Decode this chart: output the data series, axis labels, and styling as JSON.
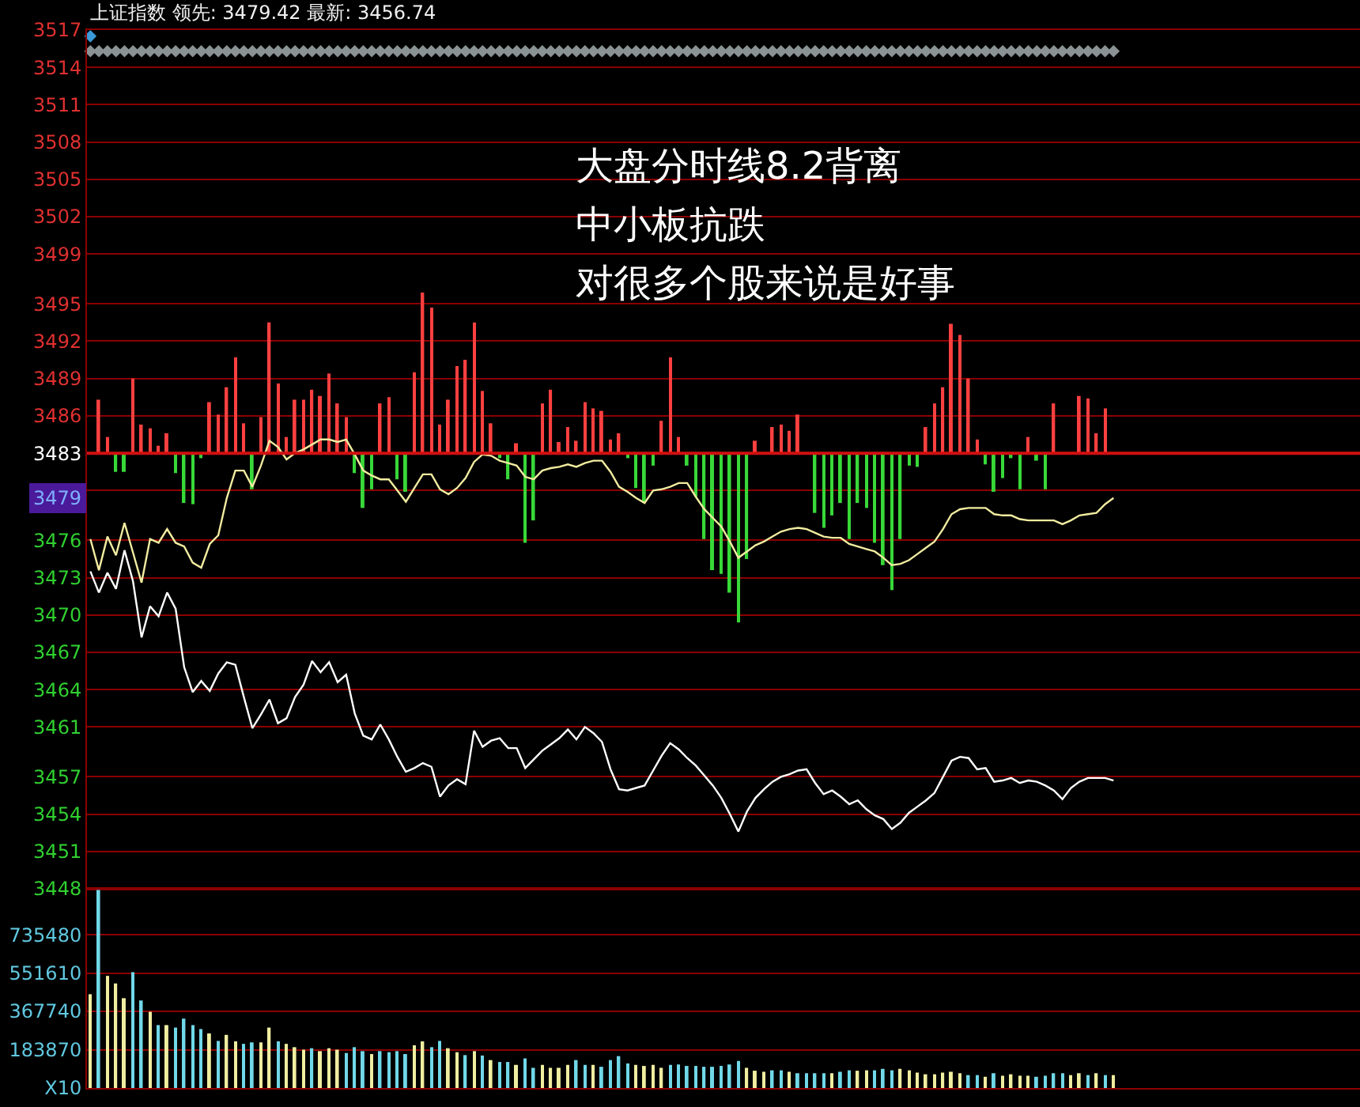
{
  "chart_data": [
    {
      "type": "line",
      "title": "上证指数 领先: 3479.42 最新: 3456.74",
      "annotations": [
        "大盘分时线8.2背离",
        "中小板抗跌",
        "对很多个股来说是好事",
        {
          "text": "3479",
          "y": 3479.42
        }
      ],
      "categories": [
        null,
        null,
        null,
        null,
        null,
        null,
        null,
        null,
        null,
        null,
        null,
        null,
        null,
        null,
        null,
        null,
        null,
        null,
        null,
        null,
        null,
        null,
        null,
        null,
        null,
        null,
        null,
        null,
        null,
        null,
        null,
        null,
        null,
        null,
        null,
        null,
        null,
        null,
        null,
        null,
        null,
        null,
        null,
        null,
        null,
        null,
        null,
        null,
        null,
        null,
        null,
        null,
        null,
        null,
        null,
        null,
        null,
        null,
        null,
        null,
        null,
        null,
        null,
        null,
        null,
        null,
        null,
        null,
        null,
        null,
        null,
        null,
        null,
        null,
        null,
        null,
        null,
        null,
        null,
        null,
        null,
        null,
        null,
        null,
        null,
        null,
        null,
        null,
        null,
        null,
        null,
        null,
        null,
        null,
        null,
        null,
        null,
        null,
        null,
        null,
        null,
        null,
        null,
        null,
        null,
        null,
        null,
        null,
        null,
        null,
        null,
        null,
        null,
        null,
        null,
        null,
        null,
        null,
        null,
        null,
        null
      ],
      "series": [
        {
          "type": "bar",
          "color": "#ff4040",
          "base": [
            null,
            3483,
            3483,
            null,
            null,
            3483,
            3483,
            3483,
            3483,
            3483,
            null,
            null,
            null,
            null,
            3483,
            3483,
            3483,
            3483,
            3483,
            null,
            3483,
            3483,
            3483,
            3483,
            3483,
            3483,
            3483,
            3483,
            3483,
            3483,
            3483,
            null,
            null,
            null,
            3483,
            3483,
            null,
            null,
            3483,
            3483,
            3483,
            3483,
            3483,
            3483,
            3483,
            3483,
            3483,
            3483,
            null,
            null,
            3483,
            null,
            null,
            3483,
            3483,
            3483,
            3483,
            3483,
            3483,
            3483,
            3483,
            3483,
            3483,
            null,
            null,
            null,
            null,
            3483,
            3483,
            3483,
            null,
            null,
            null,
            null,
            null,
            null,
            null,
            null,
            3483,
            null,
            3483,
            3483,
            3483,
            3483,
            null,
            null,
            null,
            null,
            null,
            null,
            null,
            null,
            null,
            null,
            null,
            null,
            null,
            null,
            3483,
            3483,
            3483,
            3483,
            3483,
            3483,
            3483,
            null,
            null,
            null,
            null,
            null,
            3483,
            null,
            null,
            3483,
            null,
            null,
            3483,
            3483,
            3483,
            3483,
            null
          ],
          "values": [
            null,
            4.3,
            1.3,
            null,
            null,
            6.0,
            2.3,
            2.0,
            0.6,
            1.6,
            null,
            null,
            null,
            null,
            4.1,
            3.1,
            5.3,
            7.7,
            2.4,
            null,
            2.9,
            10.5,
            5.6,
            1.3,
            4.3,
            4.3,
            5.1,
            4.6,
            6.4,
            4.0,
            2.9,
            null,
            null,
            null,
            4.0,
            4.5,
            null,
            null,
            6.5,
            12.9,
            11.7,
            2.3,
            4.3,
            7.0,
            7.5,
            10.5,
            5.0,
            2.4,
            null,
            null,
            0.8,
            null,
            null,
            4.0,
            5.1,
            0.9,
            2.1,
            1.0,
            4.1,
            3.6,
            3.4,
            1.1,
            1.6,
            null,
            null,
            null,
            null,
            2.6,
            7.7,
            1.3,
            null,
            null,
            null,
            null,
            null,
            null,
            null,
            null,
            1.0,
            null,
            2.1,
            2.3,
            1.8,
            3.1,
            null,
            null,
            null,
            null,
            null,
            null,
            null,
            null,
            null,
            null,
            null,
            null,
            null,
            null,
            2.1,
            4.0,
            5.3,
            10.4,
            9.5,
            6.0,
            1.1,
            null,
            null,
            null,
            null,
            null,
            1.3,
            null,
            null,
            4.0,
            null,
            null,
            4.6,
            4.4,
            1.6,
            3.6,
            null
          ]
        },
        {
          "type": "bar",
          "color": "#38d838",
          "base": [
            null,
            null,
            null,
            3483,
            3483,
            null,
            null,
            null,
            null,
            null,
            3483,
            3483,
            3483,
            3483,
            null,
            null,
            null,
            null,
            null,
            3483,
            null,
            null,
            null,
            null,
            null,
            null,
            null,
            null,
            null,
            null,
            null,
            3483,
            3483,
            3483,
            null,
            null,
            3483,
            3483,
            null,
            null,
            null,
            null,
            null,
            null,
            null,
            null,
            null,
            null,
            3483,
            3483,
            null,
            3483,
            3483,
            null,
            null,
            null,
            null,
            null,
            null,
            null,
            null,
            null,
            null,
            3483,
            3483,
            3483,
            3483,
            null,
            null,
            null,
            3483,
            3483,
            3483,
            3483,
            3483,
            3483,
            3483,
            3483,
            null,
            null,
            null,
            null,
            null,
            null,
            null,
            3483,
            3483,
            3483,
            3483,
            3483,
            3483,
            3483,
            3483,
            3483,
            3483,
            3483,
            3483,
            3483,
            null,
            null,
            null,
            null,
            null,
            null,
            null,
            3483,
            3483,
            3483,
            3483,
            3483,
            null,
            3483,
            3483,
            null,
            null,
            null,
            null,
            null,
            null,
            null,
            null
          ],
          "values": [
            null,
            null,
            null,
            -1.5,
            -1.5,
            null,
            null,
            null,
            null,
            null,
            -1.6,
            -4.0,
            -4.1,
            -0.4,
            null,
            null,
            null,
            null,
            null,
            -2.9,
            null,
            null,
            null,
            null,
            null,
            null,
            null,
            null,
            null,
            null,
            null,
            -1.6,
            -4.4,
            -2.9,
            null,
            null,
            -2.1,
            -3.1,
            null,
            null,
            null,
            null,
            null,
            null,
            null,
            null,
            null,
            null,
            -0.4,
            -2.1,
            null,
            -7.2,
            -5.4,
            null,
            null,
            null,
            null,
            null,
            null,
            null,
            null,
            null,
            null,
            -0.4,
            -2.8,
            -4.0,
            -1.0,
            null,
            null,
            null,
            -1.0,
            -3.5,
            -6.9,
            -9.4,
            -9.7,
            -11.2,
            -13.6,
            -8.5,
            null,
            null,
            null,
            null,
            null,
            null,
            null,
            -4.8,
            -6.0,
            -5.0,
            -4.0,
            -6.9,
            -4.0,
            -4.4,
            -7.2,
            -9.0,
            -11.0,
            -6.9,
            -1.0,
            -1.1,
            null,
            null,
            null,
            null,
            null,
            null,
            null,
            -0.9,
            -3.1,
            -2.0,
            -0.4,
            -2.9,
            null,
            -0.6,
            -2.9,
            null,
            null,
            null,
            null,
            null,
            null,
            null,
            null
          ]
        },
        {
          "type": "line",
          "color": "#f2eca0",
          "values": [
            3476.1,
            3473.6,
            3476.3,
            3474.8,
            3477.4,
            3475.0,
            3472.6,
            3476.1,
            3475.8,
            3476.9,
            3475.8,
            3475.5,
            3474.2,
            3473.8,
            3475.7,
            3476.4,
            3479.4,
            3481.6,
            3481.6,
            3480.3,
            3482.0,
            3484.0,
            3483.5,
            3482.5,
            3483.0,
            3483.3,
            3483.7,
            3484.1,
            3484.1,
            3483.9,
            3484.1,
            3482.9,
            3481.6,
            3481.2,
            3480.9,
            3480.9,
            3480.0,
            3479.1,
            3480.2,
            3481.3,
            3481.3,
            3480.1,
            3479.7,
            3480.2,
            3481.0,
            3482.3,
            3482.9,
            3482.8,
            3482.4,
            3482.2,
            3482.0,
            3481.1,
            3480.9,
            3481.6,
            3481.8,
            3481.9,
            3482.1,
            3481.9,
            3482.2,
            3482.4,
            3482.4,
            3481.5,
            3480.3,
            3479.9,
            3479.4,
            3479.0,
            3480.0,
            3480.1,
            3480.3,
            3480.6,
            3480.6,
            3479.5,
            3478.5,
            3477.8,
            3477.1,
            3475.9,
            3474.6,
            3475.1,
            3475.6,
            3475.9,
            3476.3,
            3476.7,
            3476.9,
            3477.0,
            3476.9,
            3476.6,
            3476.3,
            3476.2,
            3476.2,
            3475.7,
            3475.5,
            3475.3,
            3475.1,
            3474.6,
            3474.0,
            3474.1,
            3474.4,
            3474.9,
            3475.4,
            3475.9,
            3476.9,
            3478.1,
            3478.5,
            3478.6,
            3478.6,
            3478.6,
            3478.1,
            3478.0,
            3478.0,
            3477.7,
            3477.6,
            3477.6,
            3477.6,
            3477.6,
            3477.3,
            3477.6,
            3478.0,
            3478.1,
            3478.2,
            3478.9,
            3479.4
          ]
        },
        {
          "type": "line",
          "color": "#ffffff",
          "values": [
            3473.5,
            3471.8,
            3473.4,
            3472.1,
            3475.2,
            3472.7,
            3468.2,
            3470.7,
            3469.9,
            3471.8,
            3470.5,
            3465.8,
            3463.8,
            3464.7,
            3463.9,
            3465.3,
            3466.2,
            3466.0,
            3463.4,
            3460.9,
            3462.0,
            3463.2,
            3461.3,
            3461.7,
            3463.4,
            3464.4,
            3466.3,
            3465.4,
            3466.2,
            3464.6,
            3465.2,
            3462.1,
            3460.3,
            3460.0,
            3461.2,
            3460.0,
            3458.6,
            3457.4,
            3457.7,
            3458.1,
            3457.8,
            3455.4,
            3456.3,
            3456.8,
            3456.4,
            3460.7,
            3459.4,
            3459.9,
            3460.1,
            3459.3,
            3459.3,
            3457.7,
            3458.4,
            3459.1,
            3459.6,
            3460.1,
            3460.8,
            3460.0,
            3461.0,
            3460.5,
            3459.8,
            3457.6,
            3456.0,
            3455.9,
            3456.1,
            3456.3,
            3457.5,
            3458.7,
            3459.7,
            3459.2,
            3458.5,
            3457.9,
            3457.1,
            3456.3,
            3455.3,
            3454.0,
            3452.6,
            3454.2,
            3455.3,
            3456.0,
            3456.6,
            3457.0,
            3457.2,
            3457.5,
            3457.6,
            3456.5,
            3455.6,
            3455.9,
            3455.4,
            3454.8,
            3455.1,
            3454.4,
            3453.9,
            3453.6,
            3452.8,
            3453.3,
            3454.1,
            3454.6,
            3455.1,
            3455.7,
            3457.0,
            3458.3,
            3458.6,
            3458.5,
            3457.6,
            3457.7,
            3456.6,
            3456.7,
            3456.9,
            3456.5,
            3456.7,
            3456.6,
            3456.3,
            3455.9,
            3455.2,
            3456.1,
            3456.6,
            3456.9,
            3456.9,
            3456.9,
            3456.7
          ]
        },
        {
          "type": "scatter",
          "marker": "diamond",
          "color": "#8a9294",
          "values": [
            3515.3,
            3515.3,
            3515.3,
            3515.3,
            3515.3,
            3515.3,
            3515.3,
            3515.3,
            3515.3,
            3515.3,
            3515.3,
            3515.3,
            3515.3,
            3515.3,
            3515.3,
            3515.3,
            3515.3,
            3515.3,
            3515.3,
            3515.3,
            3515.3,
            3515.3,
            3515.3,
            3515.3,
            3515.3,
            3515.3,
            3515.3,
            3515.3,
            3515.3,
            3515.3,
            3515.3,
            3515.3,
            3515.3,
            3515.3,
            3515.3,
            3515.3,
            3515.3,
            3515.3,
            3515.3,
            3515.3,
            3515.3,
            3515.3,
            3515.3,
            3515.3,
            3515.3,
            3515.3,
            3515.3,
            3515.3,
            3515.3,
            3515.3,
            3515.3,
            3515.3,
            3515.3,
            3515.3,
            3515.3,
            3515.3,
            3515.3,
            3515.3,
            3515.3,
            3515.3,
            3515.3,
            3515.3,
            3515.3,
            3515.3,
            3515.3,
            3515.3,
            3515.3,
            3515.3,
            3515.3,
            3515.3,
            3515.3,
            3515.3,
            3515.3,
            3515.3,
            3515.3,
            3515.3,
            3515.3,
            3515.3,
            3515.3,
            3515.3,
            3515.3,
            3515.3,
            3515.3,
            3515.3,
            3515.3,
            3515.3,
            3515.3,
            3515.3,
            3515.3,
            3515.3,
            3515.3,
            3515.3,
            3515.3,
            3515.3,
            3515.3,
            3515.3,
            3515.3,
            3515.3,
            3515.3,
            3515.3,
            3515.3,
            3515.3,
            3515.3,
            3515.3,
            3515.3,
            3515.3,
            3515.3,
            3515.3,
            3515.3,
            3515.3,
            3515.3,
            3515.3,
            3515.3,
            3515.3,
            3515.3,
            3515.3,
            3515.3,
            3515.3,
            3515.3,
            3515.3,
            3515.3
          ]
        },
        {
          "type": "scatter",
          "marker": "diamond",
          "color": "#3a9ad8",
          "values": [
            3516.5,
            null,
            null,
            null,
            null,
            null,
            null,
            null,
            null,
            null,
            null,
            null,
            null,
            null,
            null,
            null,
            null,
            null,
            null,
            null,
            null,
            null,
            null,
            null,
            null,
            null,
            null,
            null,
            null,
            null,
            null,
            null,
            null,
            null,
            null,
            null,
            null,
            null,
            null,
            null,
            null,
            null,
            null,
            null,
            null,
            null,
            null,
            null,
            null,
            null,
            null,
            null,
            null,
            null,
            null,
            null,
            null,
            null,
            null,
            null,
            null,
            null,
            null,
            null,
            null,
            null,
            null,
            null,
            null,
            null,
            null,
            null,
            null,
            null,
            null,
            null,
            null,
            null,
            null,
            null,
            null,
            null,
            null,
            null,
            null,
            null,
            null,
            null,
            null,
            null,
            null,
            null,
            null,
            null,
            null,
            null,
            null,
            null,
            null,
            null,
            null,
            null,
            null,
            null,
            null,
            null,
            null,
            null,
            null,
            null,
            null,
            null,
            null,
            null,
            null,
            null,
            null,
            null,
            null,
            null,
            null
          ]
        }
      ],
      "ylim": [
        3448,
        3517
      ],
      "yticks": [
        3448,
        3451,
        3454,
        3457,
        3461,
        3464,
        3467,
        3470,
        3473,
        3476,
        {
          "value": 3480,
          "label": null
        },
        3483,
        3486,
        3489,
        3492,
        3495,
        3499,
        3502,
        3505,
        3508,
        3511,
        3514,
        3517
      ],
      "ref_lines": [
        {
          "axis": "y",
          "value": 3483,
          "color": "#d01010"
        }
      ],
      "grid": "y",
      "tick_labels": "y"
    },
    {
      "type": "bar",
      "categories": [
        null,
        null,
        null,
        null,
        null,
        null,
        null,
        null,
        null,
        null,
        null,
        null,
        null,
        null,
        null,
        null,
        null,
        null,
        null,
        null,
        null,
        null,
        null,
        null,
        null,
        null,
        null,
        null,
        null,
        null,
        null,
        null,
        null,
        null,
        null,
        null,
        null,
        null,
        null,
        null,
        null,
        null,
        null,
        null,
        null,
        null,
        null,
        null,
        null,
        null,
        null,
        null,
        null,
        null,
        null,
        null,
        null,
        null,
        null,
        null,
        null,
        null,
        null,
        null,
        null,
        null,
        null,
        null,
        null,
        null,
        null,
        null,
        null,
        null,
        null,
        null,
        null,
        null,
        null,
        null,
        null,
        null,
        null,
        null,
        null,
        null,
        null,
        null,
        null,
        null,
        null,
        null,
        null,
        null,
        null,
        null,
        null,
        null,
        null,
        null,
        null,
        null,
        null,
        null,
        null,
        null,
        null,
        null,
        null,
        null,
        null,
        null,
        null,
        null,
        null,
        null,
        null,
        null,
        null,
        null,
        null
      ],
      "values": [
        450000,
        950000,
        538000,
        502000,
        431000,
        556000,
        420000,
        366000,
        302000,
        302000,
        290000,
        333000,
        302000,
        283000,
        262000,
        226000,
        255000,
        224000,
        212000,
        219000,
        219000,
        290000,
        224000,
        212000,
        196000,
        184000,
        191000,
        177000,
        191000,
        184000,
        168000,
        196000,
        177000,
        163000,
        177000,
        172000,
        177000,
        163000,
        205000,
        224000,
        196000,
        226000,
        191000,
        172000,
        158000,
        177000,
        156000,
        134000,
        125000,
        125000,
        111000,
        142000,
        97000,
        111000,
        97000,
        97000,
        111000,
        134000,
        111000,
        111000,
        102000,
        134000,
        153000,
        118000,
        111000,
        106000,
        111000,
        97000,
        111000,
        113000,
        106000,
        106000,
        102000,
        102000,
        106000,
        113000,
        130000,
        97000,
        83000,
        78000,
        85000,
        85000,
        78000,
        71000,
        71000,
        71000,
        71000,
        71000,
        78000,
        85000,
        83000,
        85000,
        85000,
        92000,
        85000,
        92000,
        85000,
        74000,
        66000,
        66000,
        74000,
        78000,
        71000,
        62000,
        62000,
        54000,
        71000,
        59000,
        66000,
        59000,
        59000,
        54000,
        59000,
        71000,
        71000,
        62000,
        71000,
        62000,
        71000,
        62000,
        62000
      ],
      "colors": [
        "#f0eea0",
        "#70d8e8",
        "#f0eea0",
        "#f0eea0",
        "#f0eea0",
        "#70d8e8",
        "#70d8e8",
        "#f0eea0",
        "#70d8e8",
        "#f0eea0",
        "#70d8e8",
        "#70d8e8",
        "#70d8e8",
        "#70d8e8",
        "#f0eea0",
        "#70d8e8",
        "#f0eea0",
        "#f0eea0",
        "#70d8e8",
        "#70d8e8",
        "#f0eea0",
        "#f0eea0",
        "#70d8e8",
        "#f0eea0",
        "#f0eea0",
        "#f0eea0",
        "#70d8e8",
        "#f0eea0",
        "#f0eea0",
        "#f0eea0",
        "#70d8e8",
        "#70d8e8",
        "#70d8e8",
        "#f0eea0",
        "#70d8e8",
        "#70d8e8",
        "#70d8e8",
        "#70d8e8",
        "#f0eea0",
        "#f0eea0",
        "#70d8e8",
        "#70d8e8",
        "#f0eea0",
        "#f0eea0",
        "#70d8e8",
        "#f0eea0",
        "#70d8e8",
        "#f0eea0",
        "#70d8e8",
        "#70d8e8",
        "#f0eea0",
        "#70d8e8",
        "#70d8e8",
        "#f0eea0",
        "#f0eea0",
        "#f0eea0",
        "#f0eea0",
        "#70d8e8",
        "#70d8e8",
        "#f0eea0",
        "#70d8e8",
        "#70d8e8",
        "#70d8e8",
        "#70d8e8",
        "#f0eea0",
        "#f0eea0",
        "#f0eea0",
        "#f0eea0",
        "#70d8e8",
        "#70d8e8",
        "#70d8e8",
        "#70d8e8",
        "#70d8e8",
        "#70d8e8",
        "#70d8e8",
        "#70d8e8",
        "#70d8e8",
        "#f0eea0",
        "#f0eea0",
        "#f0eea0",
        "#70d8e8",
        "#70d8e8",
        "#f0eea0",
        "#70d8e8",
        "#70d8e8",
        "#70d8e8",
        "#70d8e8",
        "#f0eea0",
        "#70d8e8",
        "#70d8e8",
        "#f0eea0",
        "#f0eea0",
        "#70d8e8",
        "#70d8e8",
        "#70d8e8",
        "#f0eea0",
        "#f0eea0",
        "#f0eea0",
        "#f0eea0",
        "#f0eea0",
        "#f0eea0",
        "#f0eea0",
        "#f0eea0",
        "#70d8e8",
        "#70d8e8",
        "#f0eea0",
        "#70d8e8",
        "#f0eea0",
        "#f0eea0",
        "#f0eea0",
        "#f0eea0",
        "#70d8e8",
        "#70d8e8",
        "#70d8e8",
        "#70d8e8",
        "#f0eea0",
        "#f0eea0",
        "#70d8e8",
        "#f0eea0",
        "#70d8e8",
        "#f0eea0"
      ],
      "ylim": [
        0,
        956000
      ],
      "yticks": [
        {
          "value": 0,
          "label": "X10"
        },
        183870,
        367740,
        551610,
        735480
      ],
      "grid": "y",
      "tick_labels": "y"
    }
  ]
}
